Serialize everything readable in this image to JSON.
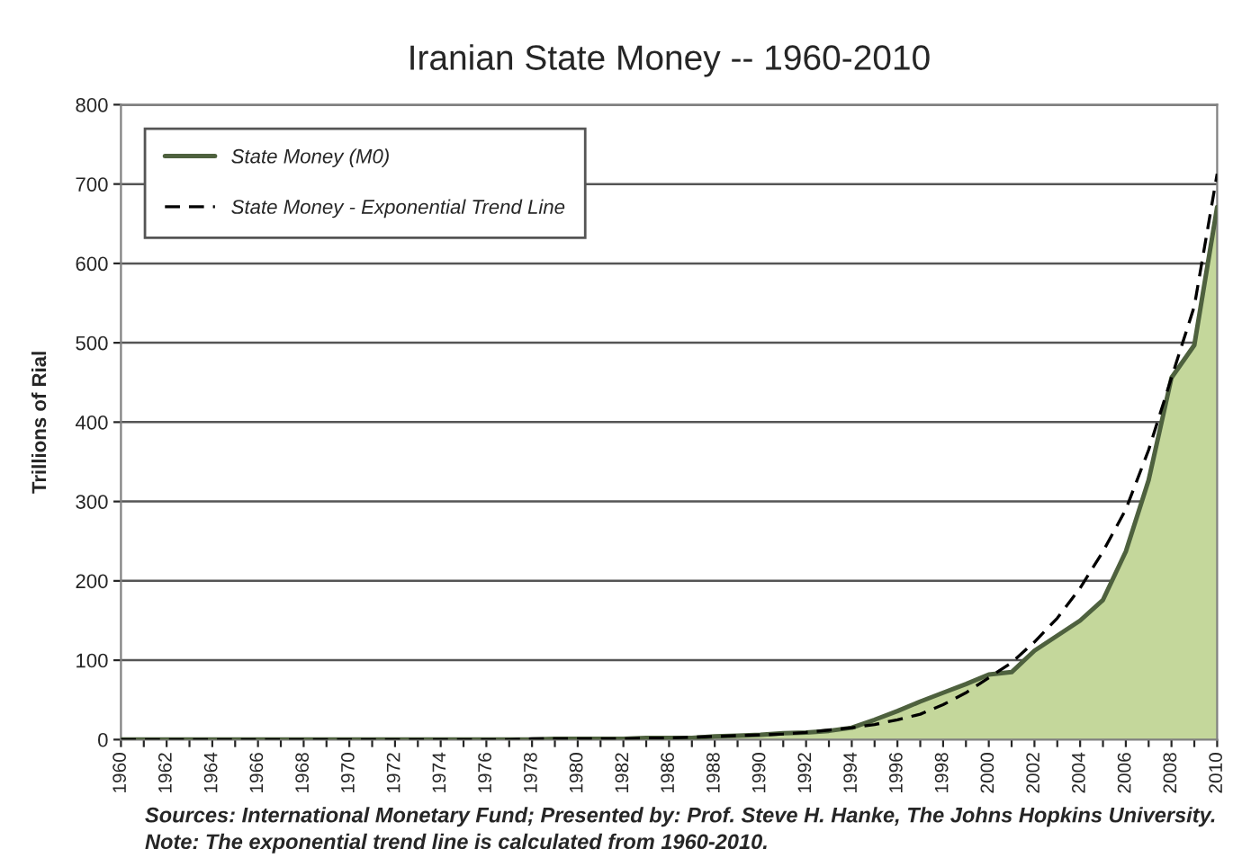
{
  "chart_data": {
    "type": "area",
    "title": "Iranian State Money -- 1960-2010",
    "ylabel": "Trillions of Rial",
    "categories": [
      "1960",
      null,
      "1962",
      null,
      "1964",
      null,
      "1966",
      null,
      "1968",
      null,
      "1970",
      null,
      "1972",
      null,
      "1974",
      null,
      "1976",
      null,
      "1978",
      null,
      "1980",
      null,
      "1982",
      null,
      "1986",
      null,
      "1988",
      null,
      "1990",
      null,
      "1992",
      null,
      "1994",
      null,
      "1996",
      null,
      "1998",
      null,
      "2000",
      null,
      "2002",
      null,
      "2004",
      null,
      "2006",
      null,
      "2008",
      null,
      "2010"
    ],
    "series": [
      {
        "name": "State Money (M0)",
        "color": "#c4d79b",
        "values": [
          0,
          0,
          0,
          0,
          0,
          0,
          0,
          0,
          0,
          0,
          0,
          0,
          0,
          0,
          0,
          0,
          0,
          0,
          0,
          1,
          1,
          1,
          1,
          2,
          2,
          2,
          4,
          5,
          6,
          8,
          9,
          11,
          15,
          25,
          36,
          48,
          59,
          70,
          82,
          85,
          112,
          131,
          150,
          176,
          237,
          327,
          456,
          497,
          671
        ]
      },
      {
        "name": "State Money - Exponential Trend Line",
        "type": "line",
        "line_style": "dashed",
        "color": "#000000",
        "values": [
          0,
          0,
          0,
          0,
          0,
          0,
          0,
          0,
          0,
          0,
          0,
          0,
          0,
          0,
          0,
          0,
          0,
          0,
          1,
          1,
          1,
          1,
          1,
          2,
          2,
          3,
          4,
          5,
          6,
          7,
          9,
          12,
          15,
          19,
          25,
          32,
          44,
          59,
          78,
          97,
          123,
          153,
          191,
          237,
          290,
          365,
          456,
          546,
          713
        ]
      }
    ],
    "ylim": [
      0,
      800
    ],
    "yticks": [
      0,
      100,
      200,
      300,
      400,
      500,
      600,
      700,
      800
    ],
    "grid": "y",
    "legend": "top left",
    "annotations": [
      "Sources: International Monetary Fund; Presented by: Prof. Steve H. Hanke, The Johns Hopkins University.",
      "Note: The exponential trend line is calculated from 1960-2010."
    ]
  }
}
